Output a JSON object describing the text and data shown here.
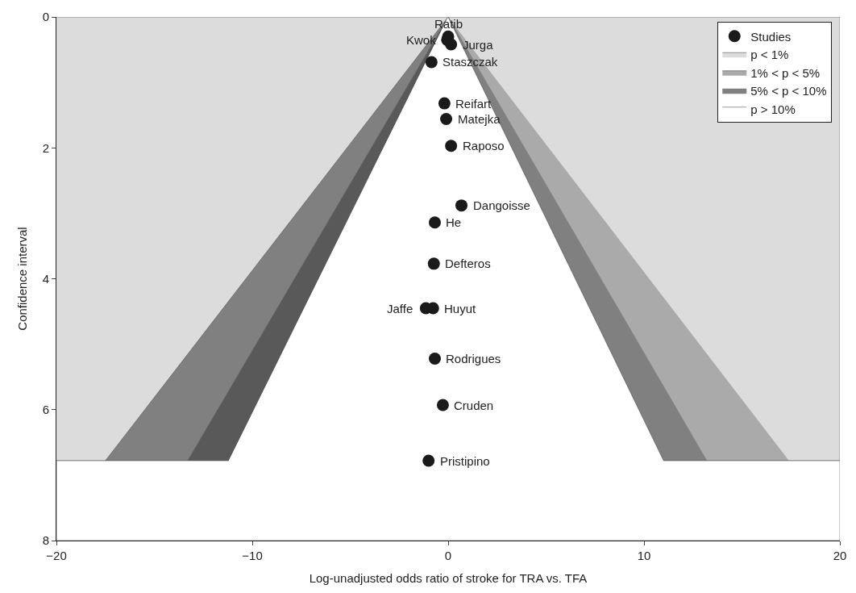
{
  "chart_data": {
    "type": "scatter",
    "xlabel": "Log-unadjusted odds ratio of stroke for TRA vs. TFA",
    "ylabel": "Confidence interval",
    "xlim": [
      -20,
      20
    ],
    "xticks": [
      {
        "value": -20,
        "label": "−20"
      },
      {
        "value": -10,
        "label": "−10"
      },
      0,
      10,
      20
    ],
    "ylim": [
      8,
      0
    ],
    "yticks": [
      0,
      2,
      4,
      6,
      8
    ],
    "legend": "top right",
    "series": [
      {
        "name": "Studies",
        "marker": "circle",
        "color": "#1a1a1a",
        "x": [
          0.0,
          -0.05,
          0.15,
          -0.85,
          -0.19,
          -0.1,
          0.15,
          0.68,
          -0.68,
          -0.73,
          -1.14,
          -0.77,
          -0.68,
          -0.27,
          -1.0
        ],
        "values": [
          0.3,
          0.35,
          0.42,
          0.69,
          1.32,
          1.56,
          1.97,
          2.88,
          3.14,
          3.77,
          4.45,
          4.45,
          5.22,
          5.93,
          6.78
        ]
      },
      {
        "type": "area",
        "name": "p < 1%",
        "color": "#dcdcdc",
        "x": [
          -20,
          20,
          20,
          -20
        ],
        "values": [
          0,
          0,
          6.78,
          6.78
        ]
      },
      {
        "type": "area",
        "name": "1% < p < 5%",
        "color": "#aaaaaa",
        "x": [
          0,
          13.2,
          17.4
        ],
        "values": [
          0,
          6.78,
          6.78
        ]
      },
      {
        "type": "area",
        "color": "#808080",
        "x": [
          0,
          -17.5,
          -13.3
        ],
        "values": [
          0,
          6.78,
          6.78
        ]
      },
      {
        "type": "area",
        "name": "5% < p < 10%",
        "color": "#808080",
        "x": [
          0,
          11.0,
          13.2
        ],
        "values": [
          0,
          6.78,
          6.78
        ]
      },
      {
        "type": "area",
        "color": "#595959",
        "x": [
          0,
          -13.3,
          -11.2
        ],
        "values": [
          0,
          6.78,
          6.78
        ]
      },
      {
        "type": "area",
        "name": "p > 10%",
        "color": "#ffffff",
        "x": [
          0,
          11.0,
          20,
          20,
          -20,
          -20,
          -11.2
        ],
        "values": [
          0,
          6.78,
          6.78,
          8,
          8,
          6.78,
          6.78
        ]
      }
    ],
    "annotations": [
      {
        "text": "Ratib",
        "x": 0.0,
        "y": 0.3
      },
      {
        "text": "Kwok",
        "x": -0.05,
        "y": 0.35
      },
      {
        "text": "Jurga",
        "x": 0.15,
        "y": 0.42
      },
      {
        "text": "Staszczak",
        "x": -0.85,
        "y": 0.69
      },
      {
        "text": "Reifart",
        "x": -0.19,
        "y": 1.32
      },
      {
        "text": "Matejka",
        "x": -0.1,
        "y": 1.56
      },
      {
        "text": "Raposo",
        "x": 0.15,
        "y": 1.97
      },
      {
        "text": "Dangoisse",
        "x": 0.68,
        "y": 2.88
      },
      {
        "text": "He",
        "x": -0.68,
        "y": 3.14
      },
      {
        "text": "Defteros",
        "x": -0.73,
        "y": 3.77
      },
      {
        "text": "Jaffe",
        "x": -1.14,
        "y": 4.45
      },
      {
        "text": "Huyut",
        "x": -0.77,
        "y": 4.45
      },
      {
        "text": "Rodrigues",
        "x": -0.68,
        "y": 5.22
      },
      {
        "text": "Cruden",
        "x": -0.27,
        "y": 5.93
      },
      {
        "text": "Pristipino",
        "x": -1.0,
        "y": 6.78
      }
    ]
  }
}
